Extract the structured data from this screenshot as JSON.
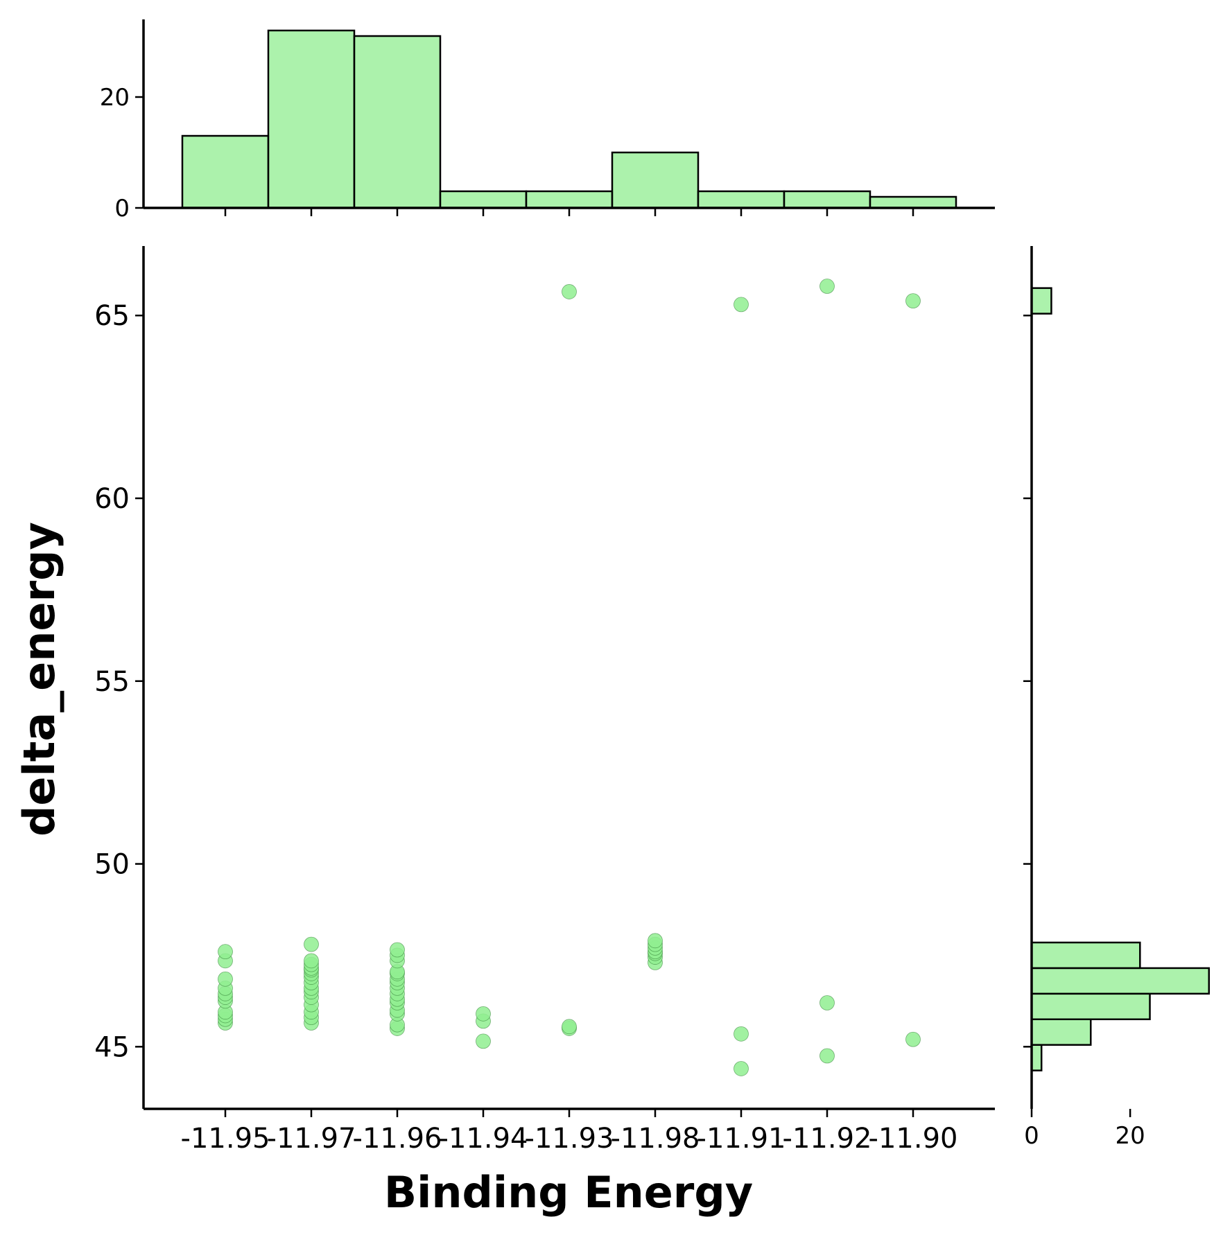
{
  "chart_data": {
    "type": "scatter",
    "xlabel": "Binding Energy",
    "ylabel": "delta_energy",
    "x_categories": [
      "-11.95",
      "-11.97",
      "-11.96",
      "-11.94",
      "-11.93",
      "-11.98",
      "-11.91",
      "-11.92",
      "-11.90"
    ],
    "ylim": [
      43.3,
      66.9
    ],
    "y_ticks": [
      "45",
      "50",
      "55",
      "60",
      "65"
    ],
    "grid": false,
    "colors": {
      "fill": "#90ee90",
      "edge": "#2e7d32",
      "bar_edge": "#000000"
    },
    "points": [
      {
        "x": "-11.95",
        "y": 45.65
      },
      {
        "x": "-11.95",
        "y": 45.75
      },
      {
        "x": "-11.95",
        "y": 45.85
      },
      {
        "x": "-11.95",
        "y": 45.95
      },
      {
        "x": "-11.95",
        "y": 46.25
      },
      {
        "x": "-11.95",
        "y": 46.35
      },
      {
        "x": "-11.95",
        "y": 46.45
      },
      {
        "x": "-11.95",
        "y": 46.6
      },
      {
        "x": "-11.95",
        "y": 46.85
      },
      {
        "x": "-11.95",
        "y": 47.35
      },
      {
        "x": "-11.95",
        "y": 47.6
      },
      {
        "x": "-11.97",
        "y": 45.65
      },
      {
        "x": "-11.97",
        "y": 45.8
      },
      {
        "x": "-11.97",
        "y": 45.95
      },
      {
        "x": "-11.97",
        "y": 46.15
      },
      {
        "x": "-11.97",
        "y": 46.35
      },
      {
        "x": "-11.97",
        "y": 46.5
      },
      {
        "x": "-11.97",
        "y": 46.6
      },
      {
        "x": "-11.97",
        "y": 46.75
      },
      {
        "x": "-11.97",
        "y": 46.9
      },
      {
        "x": "-11.97",
        "y": 47.0
      },
      {
        "x": "-11.97",
        "y": 47.1
      },
      {
        "x": "-11.97",
        "y": 47.15
      },
      {
        "x": "-11.97",
        "y": 47.25
      },
      {
        "x": "-11.97",
        "y": 47.35
      },
      {
        "x": "-11.97",
        "y": 47.8
      },
      {
        "x": "-11.96",
        "y": 45.5
      },
      {
        "x": "-11.96",
        "y": 45.6
      },
      {
        "x": "-11.96",
        "y": 45.9
      },
      {
        "x": "-11.96",
        "y": 46.0
      },
      {
        "x": "-11.96",
        "y": 46.2
      },
      {
        "x": "-11.96",
        "y": 46.3
      },
      {
        "x": "-11.96",
        "y": 46.45
      },
      {
        "x": "-11.96",
        "y": 46.6
      },
      {
        "x": "-11.96",
        "y": 46.75
      },
      {
        "x": "-11.96",
        "y": 46.85
      },
      {
        "x": "-11.96",
        "y": 47.0
      },
      {
        "x": "-11.96",
        "y": 47.05
      },
      {
        "x": "-11.96",
        "y": 47.35
      },
      {
        "x": "-11.96",
        "y": 47.5
      },
      {
        "x": "-11.96",
        "y": 47.65
      },
      {
        "x": "-11.94",
        "y": 45.15
      },
      {
        "x": "-11.94",
        "y": 45.7
      },
      {
        "x": "-11.94",
        "y": 45.9
      },
      {
        "x": "-11.93",
        "y": 45.5
      },
      {
        "x": "-11.93",
        "y": 45.55
      },
      {
        "x": "-11.93",
        "y": 65.65
      },
      {
        "x": "-11.98",
        "y": 47.3
      },
      {
        "x": "-11.98",
        "y": 47.45
      },
      {
        "x": "-11.98",
        "y": 47.55
      },
      {
        "x": "-11.98",
        "y": 47.6
      },
      {
        "x": "-11.98",
        "y": 47.7
      },
      {
        "x": "-11.98",
        "y": 47.8
      },
      {
        "x": "-11.98",
        "y": 47.9
      },
      {
        "x": "-11.91",
        "y": 44.4
      },
      {
        "x": "-11.91",
        "y": 45.35
      },
      {
        "x": "-11.91",
        "y": 65.3
      },
      {
        "x": "-11.92",
        "y": 44.75
      },
      {
        "x": "-11.92",
        "y": 46.2
      },
      {
        "x": "-11.92",
        "y": 65.8
      },
      {
        "x": "-11.90",
        "y": 45.2
      },
      {
        "x": "-11.90",
        "y": 65.4
      }
    ],
    "top_hist": {
      "ylim": [
        0,
        34
      ],
      "y_ticks": [
        "0",
        "20"
      ],
      "bins": [
        {
          "from": -0.5,
          "to": 0.5,
          "count": 13
        },
        {
          "from": 0.5,
          "to": 1.5,
          "count": 32
        },
        {
          "from": 1.5,
          "to": 2.5,
          "count": 31
        },
        {
          "from": 2.5,
          "to": 3.5,
          "count": 3
        },
        {
          "from": 3.5,
          "to": 4.5,
          "count": 3
        },
        {
          "from": 4.5,
          "to": 5.5,
          "count": 10
        },
        {
          "from": 5.5,
          "to": 6.5,
          "count": 3
        },
        {
          "from": 6.5,
          "to": 7.5,
          "count": 3
        },
        {
          "from": 7.5,
          "to": 8.5,
          "count": 2
        }
      ]
    },
    "right_hist": {
      "xlim": [
        0,
        38
      ],
      "x_ticks": [
        "0",
        "20"
      ],
      "bins": [
        {
          "y0": 44.35,
          "y1": 45.05,
          "count": 2
        },
        {
          "y0": 45.05,
          "y1": 45.75,
          "count": 12
        },
        {
          "y0": 45.75,
          "y1": 46.45,
          "count": 24
        },
        {
          "y0": 46.45,
          "y1": 47.15,
          "count": 36
        },
        {
          "y0": 47.15,
          "y1": 47.85,
          "count": 22
        },
        {
          "y0": 65.05,
          "y1": 65.75,
          "count": 4
        }
      ]
    }
  }
}
